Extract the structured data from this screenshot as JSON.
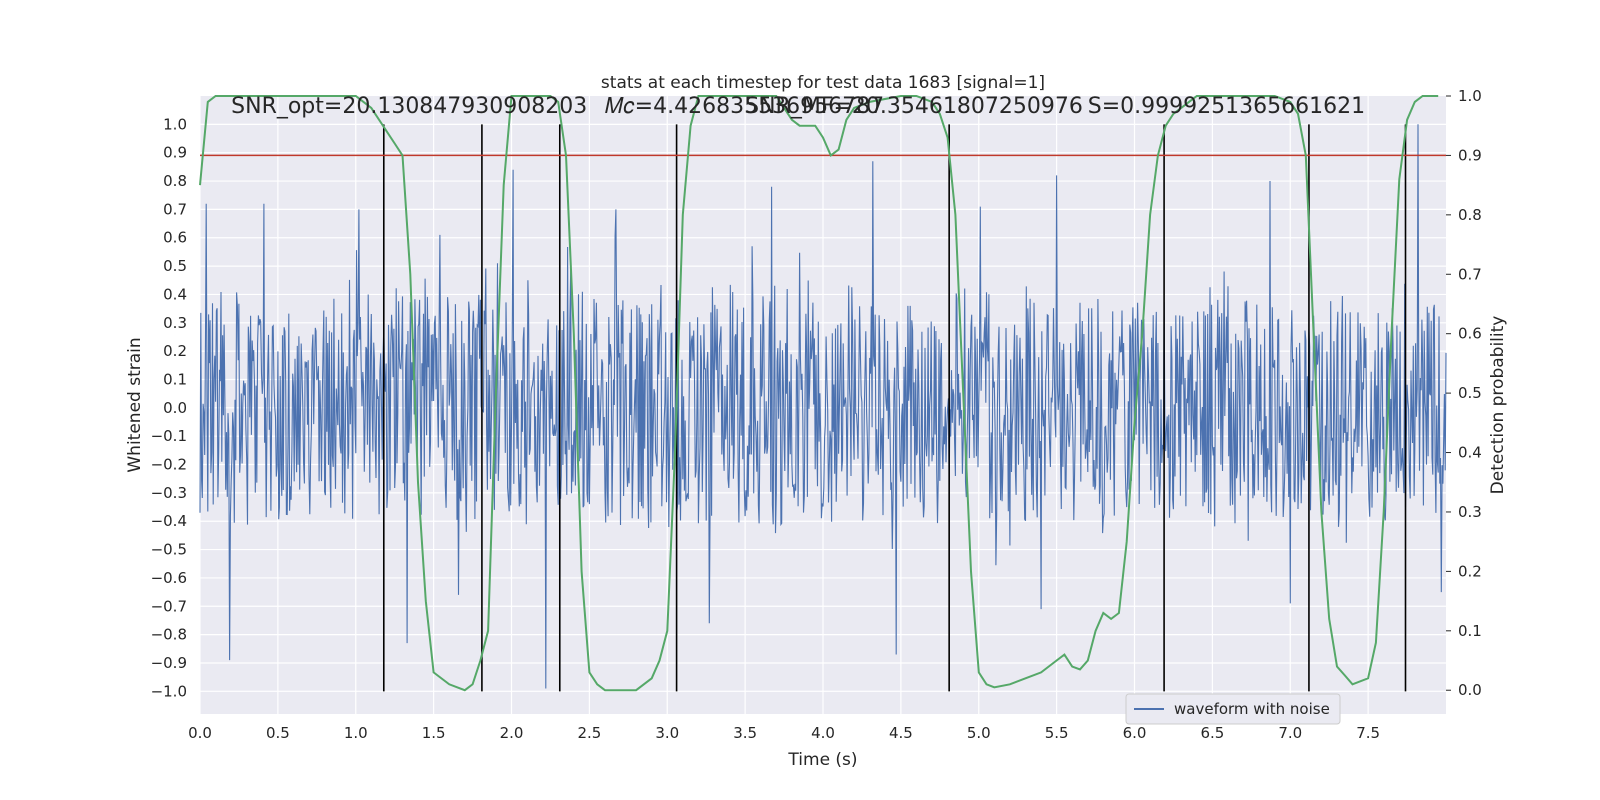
{
  "chart_data": {
    "type": "line",
    "title": "stats at each timestep for test data 1683 [signal=1]",
    "xlabel": "Time (s)",
    "ylabel_left": "Whitened strain",
    "ylabel_right": "Detection probability",
    "xlim": [
      0.0,
      8.0
    ],
    "ylim_left": [
      -1.08,
      1.1
    ],
    "ylim_right": [
      -0.04,
      1.0
    ],
    "grid": true,
    "legend_placement": "lower-right",
    "x_ticks": [
      "0.0",
      "0.5",
      "1.0",
      "1.5",
      "2.0",
      "2.5",
      "3.0",
      "3.5",
      "4.0",
      "4.5",
      "5.0",
      "5.5",
      "6.0",
      "6.5",
      "7.0",
      "7.5"
    ],
    "y_left_ticks": [
      "1.0",
      "0.9",
      "0.8",
      "0.7",
      "0.6",
      "0.5",
      "0.4",
      "0.3",
      "0.2",
      "0.1",
      "0.0",
      "−0.1",
      "−0.2",
      "−0.3",
      "−0.4",
      "−0.5",
      "−0.6",
      "−0.7",
      "−0.8",
      "−0.9",
      "−1.0"
    ],
    "y_right_ticks": [
      "1.0",
      "0.9",
      "0.8",
      "0.7",
      "0.6",
      "0.5",
      "0.4",
      "0.3",
      "0.2",
      "0.1",
      "0.0"
    ],
    "annotations": [
      {
        "text": "SNR_opt=20.130847930908203",
        "x": 0.2,
        "y": 1.04
      },
      {
        "text": "𝑀𝑐=4.426835536956787",
        "x": 2.6,
        "y": 1.04
      },
      {
        "text": "SNR_MF=20.35461807250976",
        "x": 3.5,
        "y": 1.04
      },
      {
        "text": "S=0.9999251365661621",
        "x": 5.7,
        "y": 1.04
      }
    ],
    "threshold": {
      "axis": "right",
      "value": 0.9,
      "color": "#c0392b"
    },
    "vertical_lines": [
      1.18,
      1.81,
      2.31,
      3.06,
      4.81,
      6.19,
      7.12,
      7.74
    ],
    "series": [
      {
        "name": "waveform with noise",
        "axis": "left",
        "color": "#4c72b0",
        "sample_interval": 0.005,
        "duration": 8.0,
        "envelope": 0.45,
        "seed": 1683,
        "spikes": [
          {
            "x": 0.04,
            "y": 0.72
          },
          {
            "x": 0.19,
            "y": -0.89
          },
          {
            "x": 0.41,
            "y": 0.72
          },
          {
            "x": 1.02,
            "y": 0.7
          },
          {
            "x": 1.33,
            "y": -0.83
          },
          {
            "x": 1.54,
            "y": 0.61
          },
          {
            "x": 1.66,
            "y": -0.66
          },
          {
            "x": 2.01,
            "y": 0.84
          },
          {
            "x": 2.22,
            "y": -0.99
          },
          {
            "x": 2.67,
            "y": 0.7
          },
          {
            "x": 3.27,
            "y": -0.76
          },
          {
            "x": 3.67,
            "y": 0.78
          },
          {
            "x": 4.32,
            "y": 0.87
          },
          {
            "x": 4.47,
            "y": -0.87
          },
          {
            "x": 5.01,
            "y": 0.71
          },
          {
            "x": 5.5,
            "y": 0.82
          },
          {
            "x": 5.4,
            "y": -0.71
          },
          {
            "x": 6.87,
            "y": 0.8
          },
          {
            "x": 7.0,
            "y": -0.69
          },
          {
            "x": 7.82,
            "y": 1.0
          },
          {
            "x": 7.97,
            "y": -0.65
          }
        ]
      },
      {
        "name": "",
        "axis": "right",
        "color": "#55a868",
        "x": [
          0.0,
          0.05,
          0.1,
          0.2,
          0.5,
          0.8,
          1.0,
          1.05,
          1.1,
          1.15,
          1.2,
          1.25,
          1.3,
          1.35,
          1.4,
          1.45,
          1.5,
          1.6,
          1.7,
          1.75,
          1.8,
          1.85,
          1.9,
          1.95,
          2.0,
          2.1,
          2.2,
          2.25,
          2.3,
          2.35,
          2.4,
          2.45,
          2.5,
          2.55,
          2.6,
          2.7,
          2.8,
          2.9,
          2.95,
          3.0,
          3.05,
          3.1,
          3.15,
          3.2,
          3.3,
          3.5,
          3.7,
          3.75,
          3.8,
          3.85,
          3.9,
          3.95,
          4.0,
          4.05,
          4.1,
          4.15,
          4.2,
          4.3,
          4.5,
          4.6,
          4.7,
          4.75,
          4.8,
          4.85,
          4.9,
          4.95,
          5.0,
          5.05,
          5.1,
          5.2,
          5.3,
          5.4,
          5.5,
          5.55,
          5.6,
          5.65,
          5.7,
          5.75,
          5.8,
          5.85,
          5.9,
          5.95,
          6.0,
          6.05,
          6.1,
          6.15,
          6.2,
          6.25,
          6.3,
          6.35,
          6.4,
          6.5,
          6.7,
          6.9,
          7.0,
          7.05,
          7.1,
          7.15,
          7.2,
          7.25,
          7.3,
          7.35,
          7.4,
          7.5,
          7.55,
          7.6,
          7.65,
          7.7,
          7.75,
          7.8,
          7.85,
          7.9,
          7.95
        ],
        "values": [
          0.85,
          0.99,
          1.0,
          1.0,
          1.0,
          1.0,
          1.0,
          0.99,
          0.98,
          0.96,
          0.94,
          0.92,
          0.9,
          0.7,
          0.35,
          0.15,
          0.03,
          0.01,
          0.0,
          0.01,
          0.05,
          0.1,
          0.5,
          0.85,
          1.0,
          1.0,
          1.0,
          1.0,
          0.99,
          0.9,
          0.6,
          0.2,
          0.03,
          0.01,
          0.0,
          0.0,
          0.0,
          0.02,
          0.05,
          0.1,
          0.4,
          0.8,
          0.95,
          1.0,
          1.0,
          1.0,
          1.0,
          0.98,
          0.96,
          0.95,
          0.95,
          0.95,
          0.93,
          0.9,
          0.91,
          0.96,
          0.98,
          0.99,
          1.0,
          1.0,
          0.99,
          0.97,
          0.93,
          0.8,
          0.5,
          0.2,
          0.03,
          0.01,
          0.005,
          0.01,
          0.02,
          0.03,
          0.05,
          0.06,
          0.04,
          0.035,
          0.05,
          0.1,
          0.13,
          0.12,
          0.13,
          0.25,
          0.45,
          0.6,
          0.8,
          0.9,
          0.95,
          0.97,
          0.98,
          0.99,
          1.0,
          1.0,
          1.0,
          1.0,
          0.99,
          0.97,
          0.9,
          0.6,
          0.3,
          0.12,
          0.04,
          0.025,
          0.01,
          0.02,
          0.08,
          0.3,
          0.6,
          0.86,
          0.96,
          0.99,
          1.0,
          1.0,
          1.0
        ]
      }
    ]
  }
}
